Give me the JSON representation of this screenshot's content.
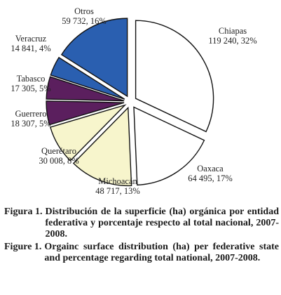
{
  "chart_data": {
    "type": "pie",
    "title": "",
    "slices": [
      {
        "name": "Chiapas",
        "value": 119240,
        "value_label": "119 240",
        "percent": 32,
        "color": "#ffffff"
      },
      {
        "name": "Oaxaca",
        "value": 64495,
        "value_label": "64 495",
        "percent": 17,
        "color": "#ffffff"
      },
      {
        "name": "Michoacán",
        "value": 48717,
        "value_label": "48 717",
        "percent": 13,
        "color": "#f7f5cc"
      },
      {
        "name": "Querétaro",
        "value": 30008,
        "value_label": "30 008",
        "percent": 8,
        "color": "#f7f5cc"
      },
      {
        "name": "Guerrero",
        "value": 18307,
        "value_label": "18 307",
        "percent": 5,
        "color": "#5b1f5e"
      },
      {
        "name": "Tabasco",
        "value": 17305,
        "value_label": "17 305",
        "percent": 5,
        "color": "#5b1f5e"
      },
      {
        "name": "Veracruz",
        "value": 14841,
        "value_label": "14 841",
        "percent": 4,
        "color": "#2a5fb0"
      },
      {
        "name": "Otros",
        "value": 59732,
        "value_label": "59 732",
        "percent": 16,
        "color": "#2a5fb0"
      }
    ],
    "exploded": true,
    "legend": "none"
  },
  "labels": [
    {
      "line1": "Chiapas",
      "line2": "119 240, 32%"
    },
    {
      "line1": "Oaxaca",
      "line2": "64 495, 17%"
    },
    {
      "line1": "Michoacán",
      "line2": "48 717, 13%"
    },
    {
      "line1": "Querétaro",
      "line2": "30 008, 8%"
    },
    {
      "line1": "Guerrero",
      "line2": "18 307, 5%"
    },
    {
      "line1": "Tabasco",
      "line2": "17 305, 5%"
    },
    {
      "line1": "Veracruz",
      "line2": "14 841, 4%"
    },
    {
      "line1": "Otros",
      "line2": "59 732, 16%"
    }
  ],
  "caption": {
    "es_head": "Figura 1.",
    "es_body": "Distribución de la superficie (ha) orgánica por entidad federativa y porcentaje respecto al total nacional, 2007-2008.",
    "en_head": "Figure 1.",
    "en_body": "Orgainc surface distribution (ha) per federative state and percentage regarding total national, 2007-2008."
  }
}
